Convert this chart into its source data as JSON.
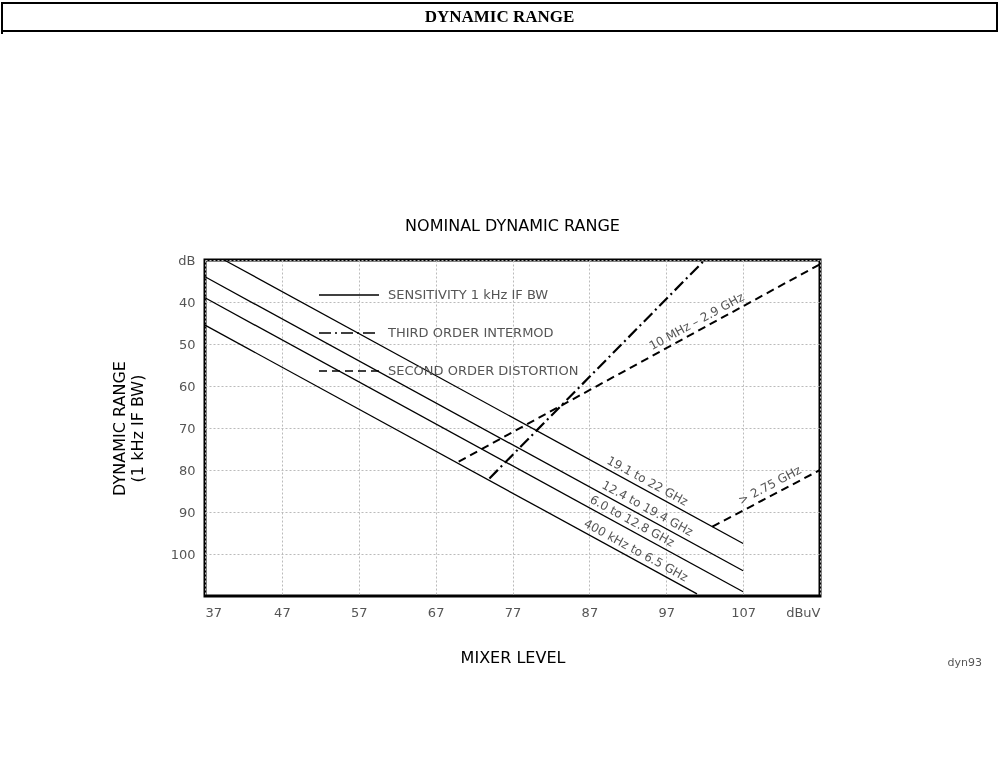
{
  "chart_data": {
    "type": "line",
    "title": "DYNAMIC RANGE",
    "subtitle": "NOMINAL DYNAMIC RANGE",
    "xlabel": "MIXER LEVEL",
    "ylabel": "DYNAMIC RANGE\n(1 kHz IF BW)",
    "xlim": [
      37,
      117
    ],
    "xticks": [
      37,
      47,
      57,
      67,
      77,
      87,
      97,
      107,
      {
        "value": 117,
        "label": "dBuV"
      }
    ],
    "ylim": [
      110,
      30
    ],
    "yticks": [
      {
        "value": 30,
        "label": "dB"
      },
      40,
      50,
      60,
      70,
      80,
      90,
      100
    ],
    "grid": true,
    "legend": "top",
    "marker": "none",
    "series": [
      {
        "name": "SENSITIVITY 1 kHz IF BW",
        "color": "#000000",
        "line_style": "solid",
        "x": [
          39.5,
          107
        ],
        "values": [
          30,
          97.5
        ]
      },
      {
        "color": "#000000",
        "line_style": "solid",
        "x": [
          37,
          107
        ],
        "values": [
          34,
          104
        ]
      },
      {
        "color": "#000000",
        "line_style": "solid",
        "x": [
          37,
          107
        ],
        "values": [
          39,
          109
        ]
      },
      {
        "color": "#000000",
        "line_style": "solid",
        "x": [
          37,
          101
        ],
        "values": [
          45.5,
          109.5
        ]
      },
      {
        "name": "THIRD ORDER INTERMOD",
        "color": "#000000",
        "line_style": "dashdot",
        "x": [
          74,
          102
        ],
        "values": [
          82,
          30
        ]
      },
      {
        "name": "SECOND ORDER DISTORTION",
        "color": "#000000",
        "line_style": "dashed",
        "x": [
          70,
          117
        ],
        "values": [
          78,
          31
        ]
      },
      {
        "color": "#000000",
        "line_style": "dashed",
        "x": [
          103,
          117
        ],
        "values": [
          93.5,
          80
        ]
      }
    ],
    "annotations": [
      {
        "text": "19.1 to 22 GHz",
        "x": 94,
        "y": 84.5
      },
      {
        "text": "12.4 to 19.4 GHz",
        "x": 94,
        "y": 91
      },
      {
        "text": "6.0 to 12.8 GHz",
        "x": 92,
        "y": 94
      },
      {
        "text": "400 kHz to 6.5 GHz",
        "x": 92.5,
        "y": 101
      },
      {
        "text": "10 MHz – 2.9 GHz",
        "x": 101.5,
        "y": 46.5
      },
      {
        "text": "> 2.75 GHz",
        "x": 111,
        "y": 85.5
      },
      "dyn93"
    ]
  }
}
